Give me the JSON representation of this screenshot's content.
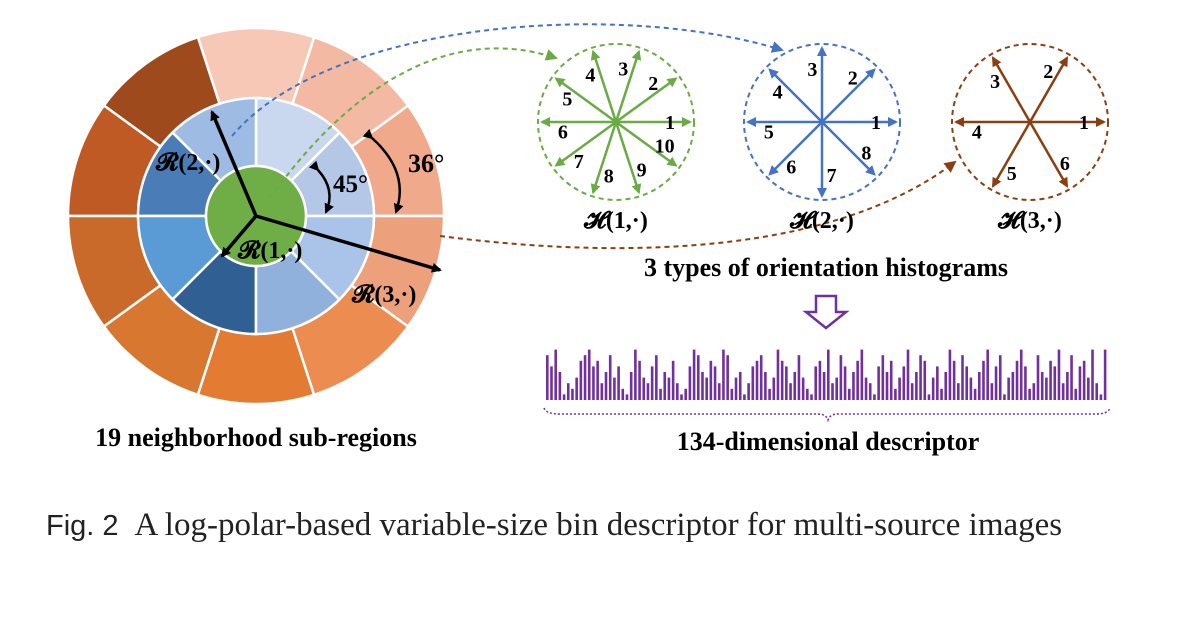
{
  "polar": {
    "label_r1": "𝓡(1,·)",
    "label_r2": "𝓡(2,·)",
    "label_r3": "𝓡(3,·)",
    "angle_inner": "45°",
    "angle_outer": "36°",
    "caption": "19 neighborhood sub-regions",
    "colors": {
      "center": "#6fae47",
      "ring1": [
        "#b4c7e7",
        "#c9d7ef",
        "#9dbbe3",
        "#4a7db8",
        "#5b9bd5",
        "#2f5f93",
        "#8fb1dc",
        "#a9c4e8"
      ],
      "ring2": [
        "#f1a98c",
        "#f4b9a2",
        "#f7c8b6",
        "#9e4a1c",
        "#c05a25",
        "#c96a2b",
        "#d8772f",
        "#e37b33",
        "#ec8c51",
        "#eda07c"
      ]
    }
  },
  "histograms": [
    {
      "name": "hist-1",
      "label": "𝓗(1,·)",
      "color": "#6aab45",
      "bins": [
        "1",
        "2",
        "3",
        "4",
        "5",
        "6",
        "7",
        "8",
        "9",
        "10"
      ]
    },
    {
      "name": "hist-2",
      "label": "𝓗(2,·)",
      "color": "#4472c4",
      "bins": [
        "1",
        "2",
        "3",
        "4",
        "5",
        "6",
        "7",
        "8"
      ]
    },
    {
      "name": "hist-3",
      "label": "𝓗(3,·)",
      "color": "#8a3f12",
      "bins": [
        "1",
        "2",
        "3",
        "4",
        "5",
        "6"
      ]
    }
  ],
  "histograms_caption": "3 types of orientation histograms",
  "descriptor": {
    "caption": "134-dimensional descriptor",
    "color": "#7030a0",
    "values": [
      0.8,
      0.6,
      0.9,
      0.5,
      0.1,
      0.3,
      0.2,
      0.4,
      0.7,
      0.8,
      0.9,
      0.6,
      0.7,
      0.3,
      0.5,
      0.8,
      0.4,
      0.6,
      0.2,
      0.1,
      0.5,
      0.9,
      0.7,
      0.4,
      0.3,
      0.6,
      0.8,
      0.2,
      0.5,
      0.4,
      0.7,
      0.3,
      0.1,
      0.2,
      0.6,
      0.9,
      0.8,
      0.5,
      0.4,
      0.7,
      0.6,
      0.3,
      0.9,
      0.8,
      0.2,
      0.4,
      0.5,
      0.1,
      0.3,
      0.6,
      0.7,
      0.8,
      0.5,
      0.2,
      0.4,
      0.9,
      0.7,
      0.6,
      0.3,
      0.5,
      0.8,
      0.4,
      0.2,
      0.1,
      0.6,
      0.7,
      0.5,
      0.9,
      0.3,
      0.4,
      0.8,
      0.6,
      0.2,
      0.5,
      0.7,
      0.9,
      0.4,
      0.3,
      0.1,
      0.6,
      0.8,
      0.5,
      0.7,
      0.2,
      0.4,
      0.6,
      0.9,
      0.3,
      0.5,
      0.8,
      0.7,
      0.1,
      0.4,
      0.6,
      0.2,
      0.5,
      0.9,
      0.7,
      0.3,
      0.8,
      0.6,
      0.4,
      0.2,
      0.5,
      0.7,
      0.9,
      0.3,
      0.6,
      0.8,
      0.1,
      0.4,
      0.5,
      0.7,
      0.9,
      0.6,
      0.2,
      0.3,
      0.8,
      0.5,
      0.4,
      0.7,
      0.6,
      0.9,
      0.3,
      0.5,
      0.8,
      0.2,
      0.6,
      0.7,
      0.4,
      0.9,
      0.3,
      0.1,
      0.9
    ]
  },
  "caption": {
    "fig_label": "Fig. 2",
    "text": "A log-polar-based variable-size bin descriptor for multi-source images"
  }
}
